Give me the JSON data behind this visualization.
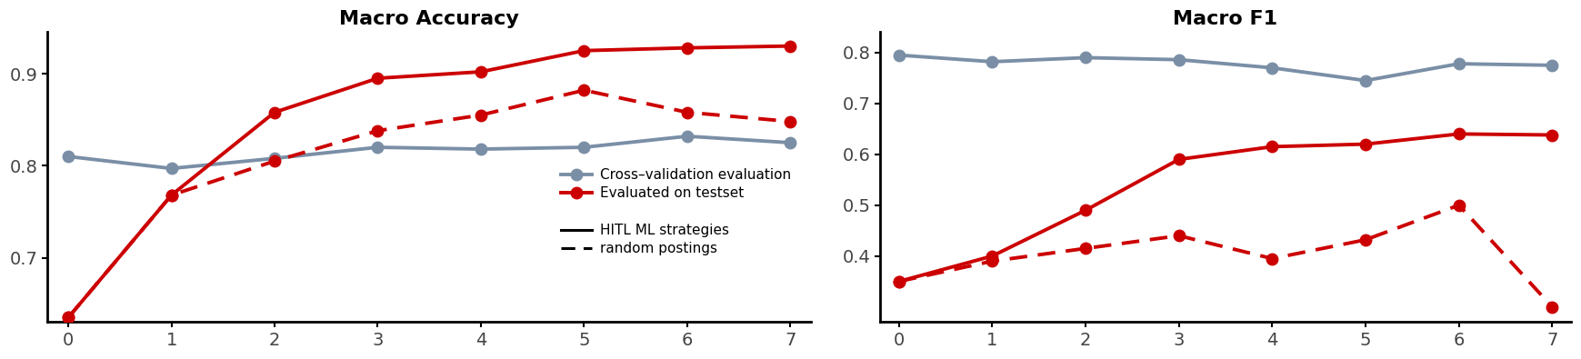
{
  "x": [
    0,
    1,
    2,
    3,
    4,
    5,
    6,
    7
  ],
  "acc_cv": [
    0.81,
    0.797,
    0.808,
    0.82,
    0.818,
    0.82,
    0.832,
    0.825
  ],
  "acc_hitl": [
    0.635,
    0.768,
    0.858,
    0.895,
    0.902,
    0.925,
    0.928,
    0.93
  ],
  "acc_random": [
    0.635,
    0.768,
    0.805,
    0.838,
    0.855,
    0.882,
    0.858,
    0.848
  ],
  "f1_cv": [
    0.795,
    0.782,
    0.79,
    0.786,
    0.77,
    0.745,
    0.778,
    0.775
  ],
  "f1_hitl": [
    0.35,
    0.4,
    0.49,
    0.59,
    0.615,
    0.62,
    0.64,
    0.638
  ],
  "f1_random": [
    0.35,
    0.39,
    0.415,
    0.44,
    0.395,
    0.432,
    0.5,
    0.3
  ],
  "color_cv": "#7a8fa6",
  "color_red": "#cc0000",
  "title_acc": "Macro Accuracy",
  "title_f1": "Macro F1",
  "legend_cv": "Cross–validation evaluation",
  "legend_test": "Evaluated on testset",
  "legend_hitl": "HITL ML strategies",
  "legend_random": "random postings",
  "xlim": [
    -0.2,
    7.2
  ],
  "acc_ylim": [
    0.63,
    0.945
  ],
  "acc_yticks": [
    0.7,
    0.8,
    0.9
  ],
  "f1_ylim": [
    0.27,
    0.84
  ],
  "f1_yticks": [
    0.4,
    0.5,
    0.6,
    0.7,
    0.8
  ],
  "marker": "o",
  "markersize": 9,
  "linewidth": 2.8,
  "title_fontsize": 16,
  "tick_fontsize": 14,
  "legend_fontsize": 11
}
